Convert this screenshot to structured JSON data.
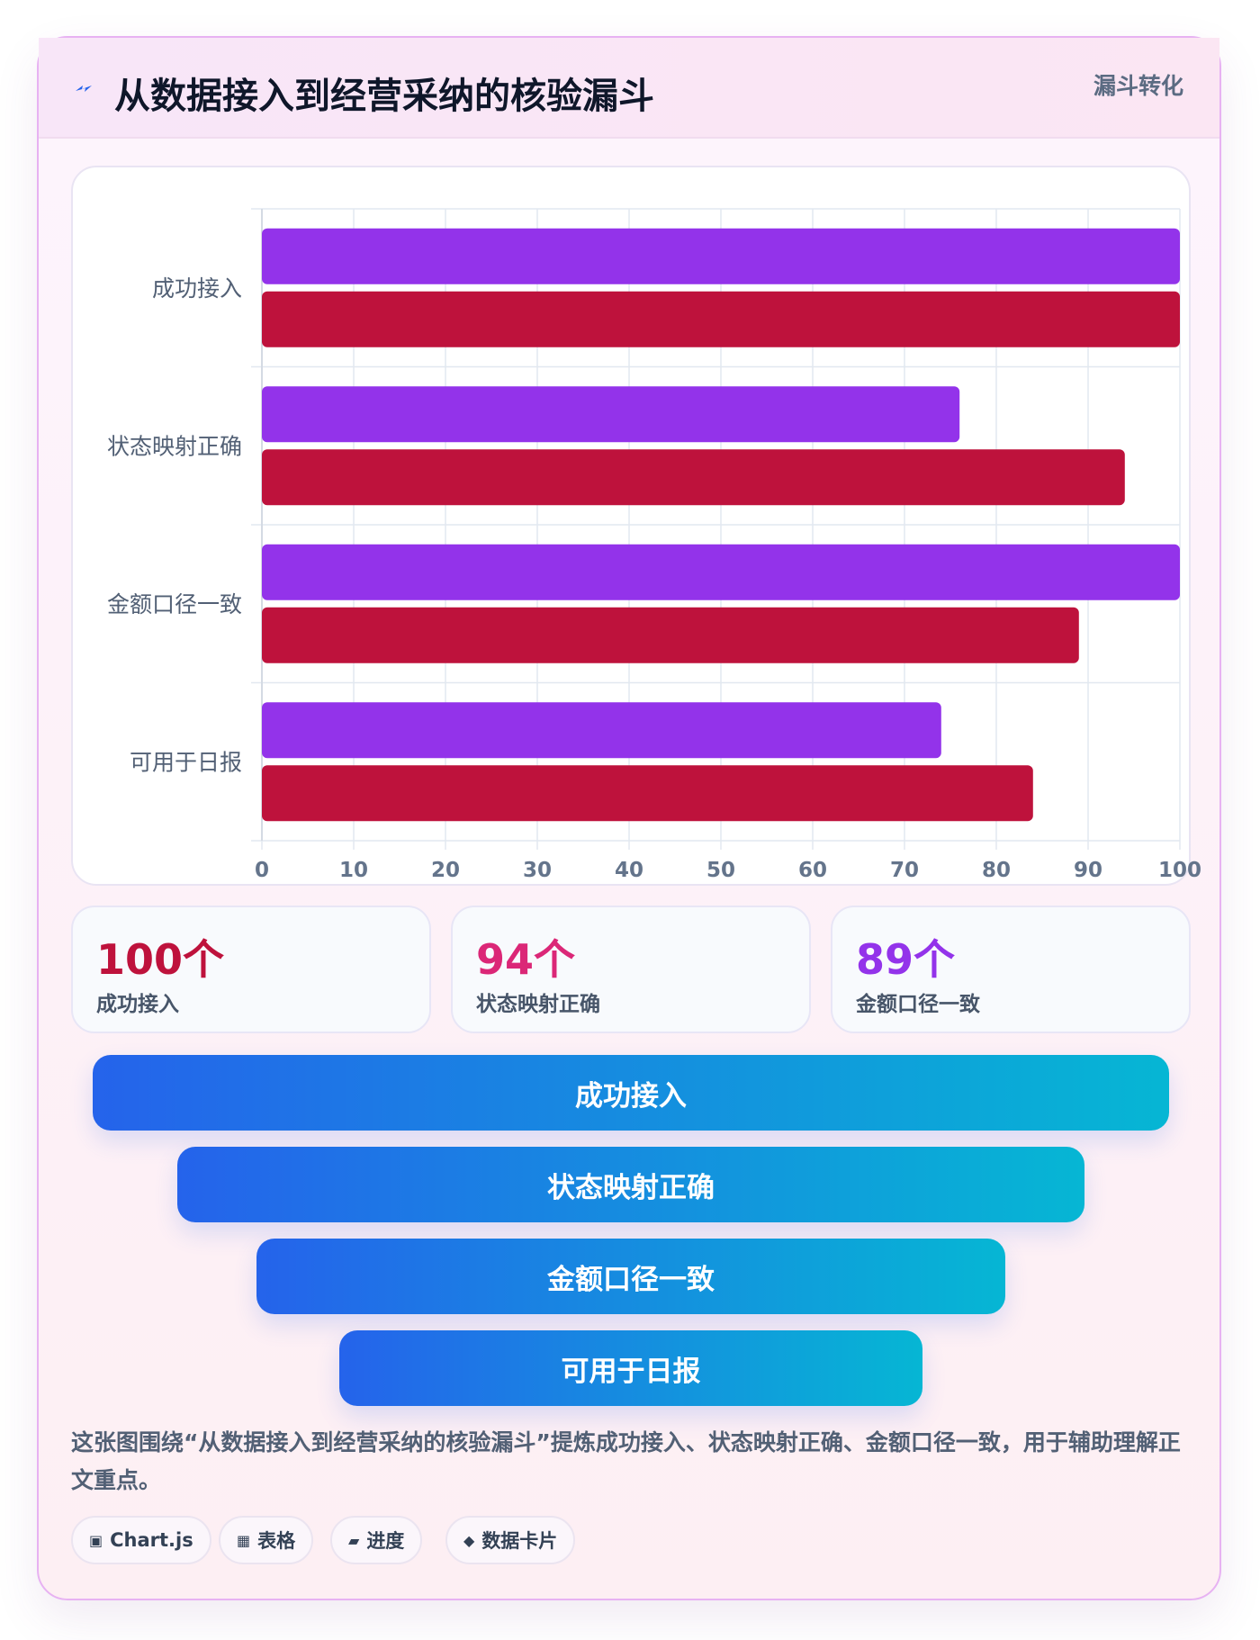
{
  "header": {
    "title": "从数据接入到经营采纳的核验漏斗",
    "badge": "漏斗转化",
    "icon": "lightning-icon"
  },
  "chart_data": {
    "type": "bar",
    "orientation": "horizontal",
    "categories": [
      "成功接入",
      "状态映射正确",
      "金额口径一致",
      "可用于日报"
    ],
    "series": [
      {
        "values": [
          100,
          76,
          100,
          74
        ],
        "color": "#9333ea"
      },
      {
        "values": [
          100,
          94,
          89,
          84
        ],
        "color": "#be123c"
      }
    ],
    "xlim": [
      0,
      100
    ],
    "xticks": [
      0,
      10,
      20,
      30,
      40,
      50,
      60,
      70,
      80,
      90,
      100
    ],
    "grid": true,
    "legend": "none"
  },
  "stats": [
    {
      "value": "100个",
      "label": "成功接入",
      "color": "#be123c"
    },
    {
      "value": "94个",
      "label": "状态映射正确",
      "color": "#db2777"
    },
    {
      "value": "89个",
      "label": "金额口径一致",
      "color": "#9333ea"
    }
  ],
  "funnel": [
    {
      "label": "成功接入"
    },
    {
      "label": "状态映射正确"
    },
    {
      "label": "金额口径一致"
    },
    {
      "label": "可用于日报"
    }
  ],
  "note": "这张图围绕“从数据接入到经营采纳的核验漏斗”提炼成功接入、状态映射正确、金额口径一致，用于辅助理解正文重点。",
  "tags": [
    {
      "icon": "▣",
      "icon_name": "chart-icon",
      "label": "Chart.js"
    },
    {
      "icon": "▦",
      "icon_name": "table-icon",
      "label": "表格"
    },
    {
      "icon": "▰",
      "icon_name": "progress-icon",
      "label": "进度"
    },
    {
      "icon": "◆",
      "icon_name": "diamond-icon",
      "label": "数据卡片"
    }
  ]
}
